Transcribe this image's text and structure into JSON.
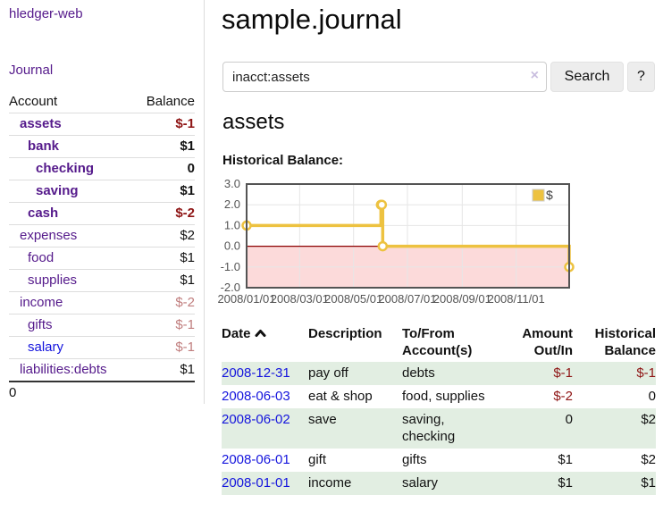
{
  "app": {
    "brand": "hledger-web"
  },
  "sidebar": {
    "nav": {
      "journal": "Journal"
    },
    "table": {
      "header": {
        "account": "Account",
        "balance": "Balance"
      },
      "rows": [
        {
          "name": "assets",
          "balance": "$-1"
        },
        {
          "name": "bank",
          "balance": "$1"
        },
        {
          "name": "checking",
          "balance": "0"
        },
        {
          "name": "saving",
          "balance": "$1"
        },
        {
          "name": "cash",
          "balance": "$-2"
        },
        {
          "name": "expenses",
          "balance": "$2"
        },
        {
          "name": "food",
          "balance": "$1"
        },
        {
          "name": "supplies",
          "balance": "$1"
        },
        {
          "name": "income",
          "balance": "$-2"
        },
        {
          "name": "gifts",
          "balance": "$-1"
        },
        {
          "name": "salary",
          "balance": "$-1"
        },
        {
          "name": "liabilities:debts",
          "balance": "$1"
        }
      ],
      "total": "0"
    }
  },
  "main": {
    "title": "sample.journal",
    "search": {
      "value": "inacct:assets",
      "clear_icon": "×",
      "search_button": "Search",
      "help_button": "?"
    },
    "account_heading": "assets",
    "section_label": "Historical Balance:"
  },
  "chart_data": {
    "type": "line",
    "step": true,
    "title": "Historical Balance:",
    "series": [
      {
        "name": "$",
        "color": "#edc240",
        "points": [
          [
            "2008-01-01",
            1
          ],
          [
            "2008-06-01",
            2
          ],
          [
            "2008-06-02",
            2
          ],
          [
            "2008-06-03",
            0
          ],
          [
            "2008-12-31",
            -1
          ]
        ]
      }
    ],
    "x_domain": [
      "2008-01-01",
      "2008-12-31"
    ],
    "x_ticks": [
      "2008/01/01",
      "2008/03/01",
      "2008/05/01",
      "2008/07/01",
      "2008/09/01",
      "2008/11/01"
    ],
    "y_ticks": [
      3.0,
      2.0,
      1.0,
      0.0,
      -1.0,
      -2.0
    ],
    "ylim": [
      -2,
      3
    ],
    "grid": true,
    "legend_position": "top-right",
    "negative_region_color": "#fcdada",
    "zero_line_color": "#8b0000",
    "border_color": "#545454",
    "tick_label_color": "#545454"
  },
  "register": {
    "headers": {
      "date": "Date",
      "description": "Description",
      "tofrom": "To/From Account(s)",
      "amount": "Amount Out/In",
      "balance": "Historical Balance"
    },
    "rows": [
      {
        "date": "2008-12-31",
        "description": "pay off",
        "accounts": "debts",
        "amount": "$-1",
        "balance": "$-1"
      },
      {
        "date": "2008-06-03",
        "description": "eat & shop",
        "accounts": "food, supplies",
        "amount": "$-2",
        "balance": "0"
      },
      {
        "date": "2008-06-02",
        "description": "save",
        "accounts": "saving, checking",
        "amount": "0",
        "balance": "$2"
      },
      {
        "date": "2008-06-01",
        "description": "gift",
        "accounts": "gifts",
        "amount": "$1",
        "balance": "$2"
      },
      {
        "date": "2008-01-01",
        "description": "income",
        "accounts": "salary",
        "amount": "$1",
        "balance": "$1"
      }
    ]
  },
  "colors": {
    "link_purple": "#551a8b",
    "link_blue": "#1414dd",
    "negative": "#8e1414",
    "negative_soft": "#c07d7d",
    "row_stripe_green": "#e2eee2",
    "series_gold": "#edc240",
    "negative_region_pink": "#fcdada",
    "zero_line_red": "#8b0000"
  }
}
